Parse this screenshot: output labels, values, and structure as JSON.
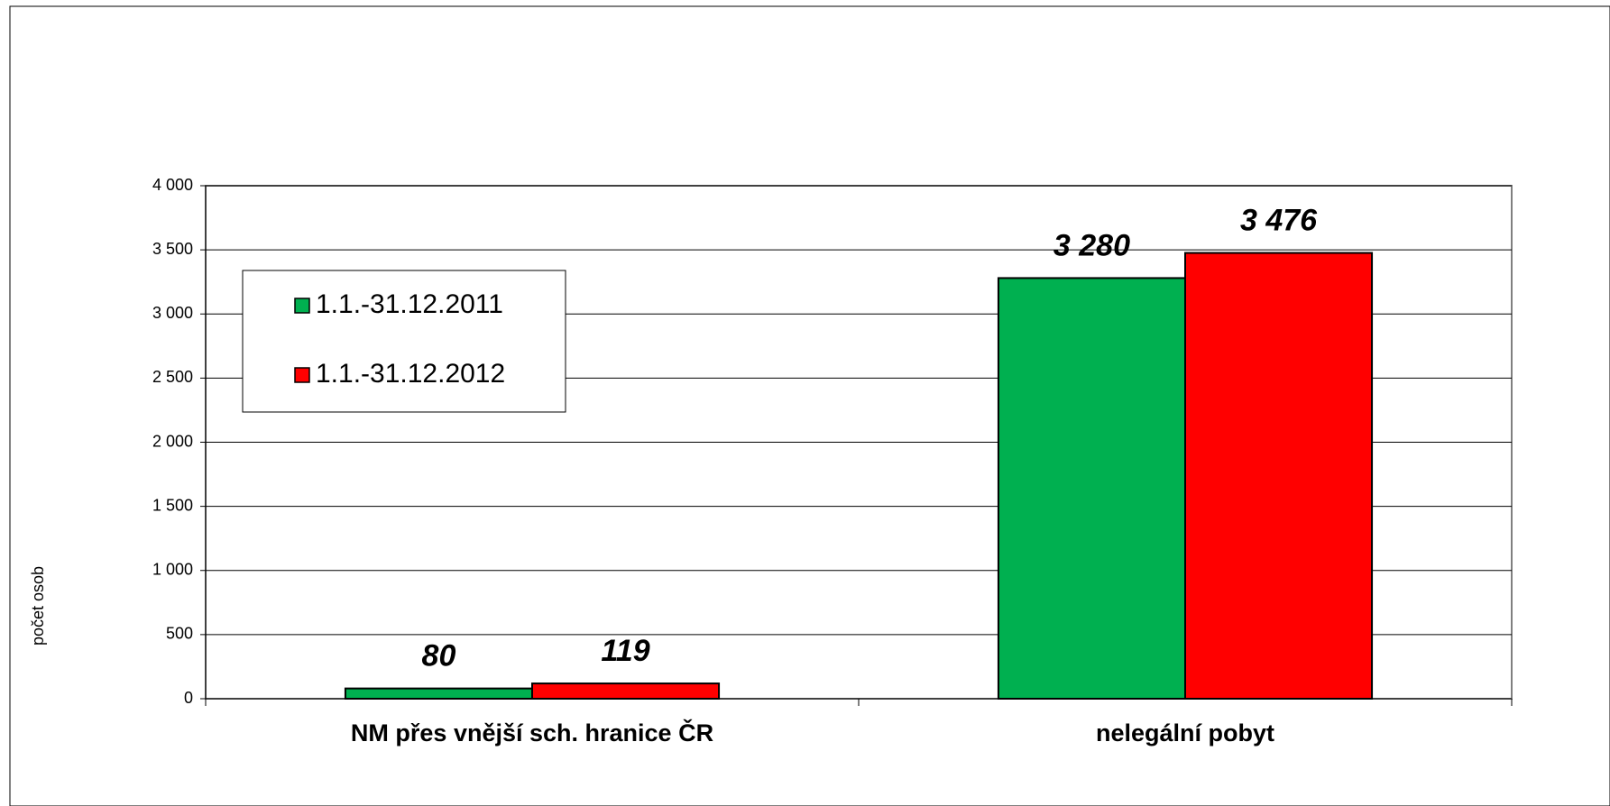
{
  "chart_data": {
    "type": "bar",
    "y_axis_label": "počet osob",
    "categories": [
      "NM přes vnější sch. hranice ČR",
      "nelegální pobyt"
    ],
    "series": [
      {
        "name": "1.1.-31.12.2011",
        "color": "#00b050",
        "values": [
          80,
          3280
        ],
        "value_labels": [
          "80",
          "3 280"
        ]
      },
      {
        "name": "1.1.-31.12.2012",
        "color": "#ff0000",
        "values": [
          119,
          3476
        ],
        "value_labels": [
          "119",
          "3 476"
        ]
      }
    ],
    "ylim": [
      0,
      4000
    ],
    "yticks": [
      0,
      500,
      {
        "value": 1000,
        "label": "1 000"
      },
      {
        "value": 1500,
        "label": "1 500"
      },
      {
        "value": 2000,
        "label": "2 000"
      },
      {
        "value": 2500,
        "label": "2 500"
      },
      {
        "value": 3000,
        "label": "3 000"
      },
      {
        "value": 3500,
        "label": "3 500"
      },
      {
        "value": 4000,
        "label": "4 000"
      }
    ],
    "grid": true,
    "legend": "upper left"
  }
}
